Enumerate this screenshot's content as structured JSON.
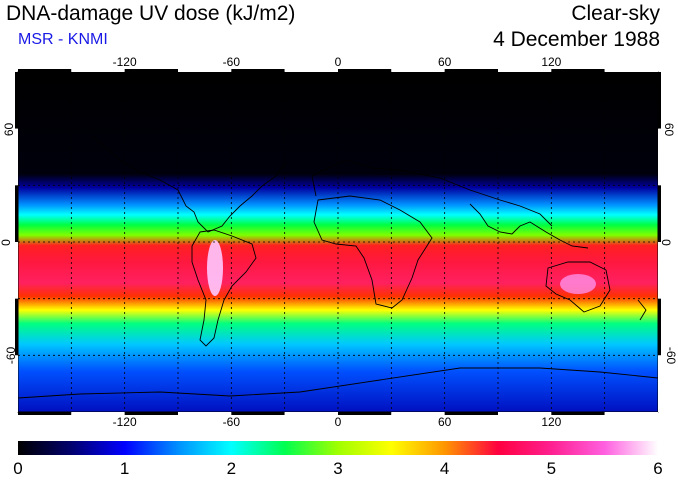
{
  "header": {
    "title": "DNA-damage UV dose (kJ/m2)",
    "source": "MSR - KNMI",
    "sky_condition": "Clear-sky",
    "date": "4 December 1988"
  },
  "map": {
    "projection": "equirectangular",
    "lon_range": [
      -180,
      180
    ],
    "lat_range": [
      -90,
      90
    ],
    "longitude_ticks": [
      {
        "value": -120,
        "label": "-120"
      },
      {
        "value": -60,
        "label": "-60"
      },
      {
        "value": 0,
        "label": "0"
      },
      {
        "value": 60,
        "label": "60"
      },
      {
        "value": 120,
        "label": "120"
      }
    ],
    "latitude_ticks": [
      {
        "value": 60,
        "label": "60"
      },
      {
        "value": 0,
        "label": "0"
      },
      {
        "value": -60,
        "label": "-60"
      }
    ],
    "grid_lon": [
      -150,
      -120,
      -90,
      -60,
      -30,
      0,
      30,
      60,
      90,
      120,
      150
    ],
    "grid_lat": [
      -60,
      -30,
      0,
      30,
      60
    ]
  },
  "colorbar": {
    "min": 0,
    "max": 6,
    "labels": [
      "0",
      "1",
      "2",
      "3",
      "4",
      "5",
      "6"
    ],
    "colors": [
      "#000000",
      "#00006e",
      "#0000ff",
      "#0090ff",
      "#00ffff",
      "#00ff50",
      "#a0ff00",
      "#ffff00",
      "#ff9600",
      "#ff0040",
      "#ff2090",
      "#ff60e0",
      "#ffffff"
    ]
  }
}
